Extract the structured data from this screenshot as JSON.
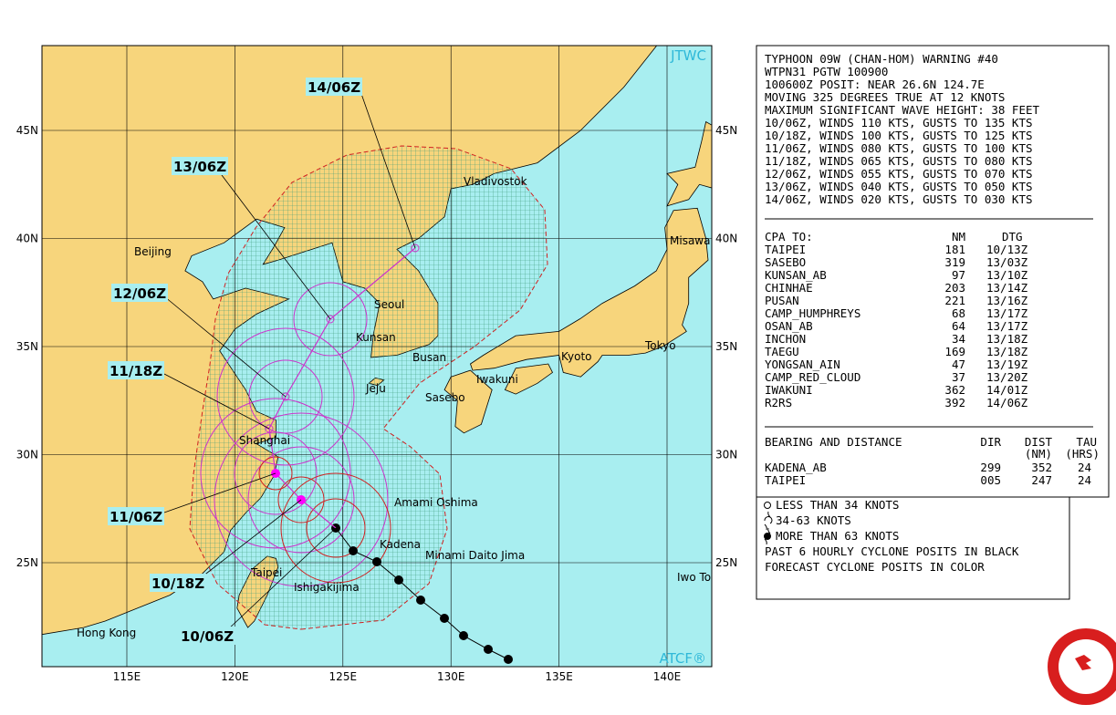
{
  "map": {
    "brand_top": "JTWC",
    "brand_bottom": "ATCF®",
    "lat_lines": [
      {
        "value": 45,
        "label": "45N"
      },
      {
        "value": 40,
        "label": "40N"
      },
      {
        "value": 35,
        "label": "35N"
      },
      {
        "value": 30,
        "label": "30N"
      },
      {
        "value": 25,
        "label": "25N"
      }
    ],
    "lon_lines": [
      {
        "value": 115,
        "label": "115E"
      },
      {
        "value": 120,
        "label": "120E"
      },
      {
        "value": 125,
        "label": "125E"
      },
      {
        "value": 130,
        "label": "130E"
      },
      {
        "value": 135,
        "label": "135E"
      },
      {
        "value": 140,
        "label": "140E"
      }
    ],
    "places": [
      "Beijing",
      "Vladivostok",
      "Misawa",
      "Seoul",
      "Kunsan",
      "Busan",
      "Jeju",
      "Sasebo",
      "Iwakuni",
      "Kyoto",
      "Tokyo",
      "Shanghai",
      "Amami Oshima",
      "Kadena",
      "Minami Daito Jima",
      "Iwo To",
      "Taipei",
      "Ishigakijima",
      "Hong Kong"
    ],
    "forecast_times": [
      "10/06Z",
      "10/18Z",
      "11/06Z",
      "11/18Z",
      "12/06Z",
      "13/06Z",
      "14/06Z"
    ]
  },
  "warning": {
    "lines": [
      "TYPHOON 09W (CHAN-HOM) WARNING #40",
      "WTPN31 PGTW 100900",
      "100600Z POSIT: NEAR 26.6N 124.7E",
      "MOVING 325 DEGREES TRUE AT 12 KNOTS",
      "MAXIMUM SIGNIFICANT WAVE HEIGHT: 38 FEET",
      "10/06Z, WINDS 110 KTS, GUSTS TO 135 KTS",
      "10/18Z, WINDS 100 KTS, GUSTS TO 125 KTS",
      "11/06Z, WINDS 080 KTS, GUSTS TO 100 KTS",
      "11/18Z, WINDS 065 KTS, GUSTS TO 080 KTS",
      "12/06Z, WINDS 055 KTS, GUSTS TO 070 KTS",
      "13/06Z, WINDS 040 KTS, GUSTS TO 050 KTS",
      "14/06Z, WINDS 020 KTS, GUSTS TO 030 KTS"
    ],
    "cpa": {
      "header": [
        "CPA TO:",
        "NM",
        "DTG"
      ],
      "rows": [
        [
          "TAIPEI",
          "181",
          "10/13Z"
        ],
        [
          "SASEBO",
          "319",
          "13/03Z"
        ],
        [
          "KUNSAN_AB",
          "97",
          "13/10Z"
        ],
        [
          "CHINHAE",
          "203",
          "13/14Z"
        ],
        [
          "PUSAN",
          "221",
          "13/16Z"
        ],
        [
          "CAMP_HUMPHREYS",
          "68",
          "13/17Z"
        ],
        [
          "OSAN_AB",
          "64",
          "13/17Z"
        ],
        [
          "INCHON",
          "34",
          "13/18Z"
        ],
        [
          "TAEGU",
          "169",
          "13/18Z"
        ],
        [
          "YONGSAN_AIN",
          "47",
          "13/19Z"
        ],
        [
          "CAMP_RED_CLOUD",
          "37",
          "13/20Z"
        ],
        [
          "IWAKUNI",
          "362",
          "14/01Z"
        ],
        [
          "R2RS",
          "392",
          "14/06Z"
        ]
      ]
    },
    "bearing": {
      "header": [
        "BEARING AND DISTANCE",
        "DIR",
        "DIST",
        "TAU"
      ],
      "units": [
        "(NM)",
        "(HRS)"
      ],
      "rows": [
        [
          "KADENA_AB",
          "299",
          "352",
          "24"
        ],
        [
          "TAIPEI",
          "005",
          "247",
          "24"
        ]
      ]
    }
  },
  "legend": [
    "LESS THAN 34 KNOTS",
    "34-63 KNOTS",
    "MORE THAN 63 KNOTS",
    "PAST 6 HOURLY CYCLONE POSITS IN BLACK",
    "FORECAST CYCLONE POSITS IN COLOR"
  ]
}
